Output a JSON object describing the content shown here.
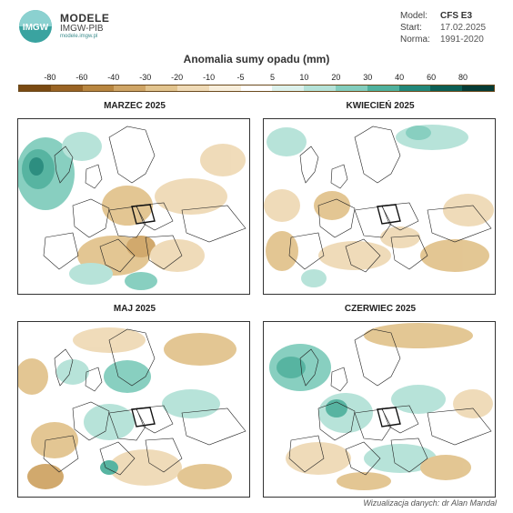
{
  "header": {
    "logo_line1": "MODELE",
    "logo_line2": "IMGW-PIB",
    "logo_line3": "modele.imgw.pl",
    "logo_mark_text": "IMGW"
  },
  "meta": [
    {
      "key": "Model:",
      "value": "CFS E3",
      "bold": true
    },
    {
      "key": "Start:",
      "value": "17.02.2025",
      "bold": false
    },
    {
      "key": "Norma:",
      "value": "1991-2020",
      "bold": false
    }
  ],
  "title": "Anomalia sumy opadu (mm)",
  "scale": {
    "labels": [
      "-80",
      "-60",
      "-40",
      "-30",
      "-20",
      "-10",
      "-5",
      "5",
      "10",
      "20",
      "30",
      "40",
      "60",
      "80"
    ],
    "colors": [
      "#7a4a12",
      "#9a6424",
      "#b88640",
      "#cfa566",
      "#e2c48e",
      "#efdab6",
      "#f8eedb",
      "#ffffff",
      "#dcf1ec",
      "#b4e2d8",
      "#82cdbd",
      "#4fb19d",
      "#22887a",
      "#0c5f55",
      "#063c36"
    ]
  },
  "panels": [
    {
      "title": "MARZEC 2025"
    },
    {
      "title": "KWIECIEŃ 2025"
    },
    {
      "title": "MAJ 2025"
    },
    {
      "title": "CZERWIEC 2025"
    }
  ],
  "credit": "Wizualizacja danych: dr Alan Mandal"
}
